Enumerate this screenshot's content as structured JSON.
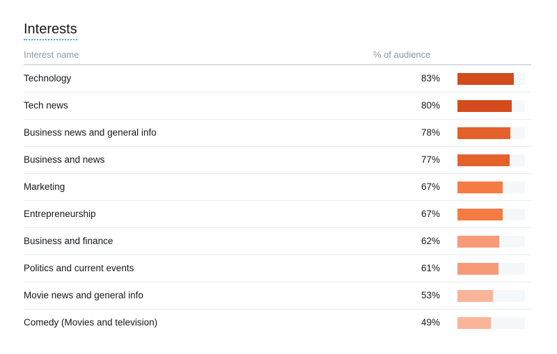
{
  "panel": {
    "title": "Interests",
    "columns": {
      "name": "Interest name",
      "percent": "% of audience"
    }
  },
  "rows": [
    {
      "name": "Technology",
      "percent_label": "83%",
      "value": 83,
      "color": "#d24c1b"
    },
    {
      "name": "Tech news",
      "percent_label": "80%",
      "value": 80,
      "color": "#d24c1b"
    },
    {
      "name": "Business news and general info",
      "percent_label": "78%",
      "value": 78,
      "color": "#e5612b"
    },
    {
      "name": "Business and news",
      "percent_label": "77%",
      "value": 77,
      "color": "#e5612b"
    },
    {
      "name": "Marketing",
      "percent_label": "67%",
      "value": 67,
      "color": "#f57b45"
    },
    {
      "name": "Entrepreneurship",
      "percent_label": "67%",
      "value": 67,
      "color": "#f57b45"
    },
    {
      "name": "Business and finance",
      "percent_label": "62%",
      "value": 62,
      "color": "#f79a78"
    },
    {
      "name": "Politics and current events",
      "percent_label": "61%",
      "value": 61,
      "color": "#f79a78"
    },
    {
      "name": "Movie news and general info",
      "percent_label": "53%",
      "value": 53,
      "color": "#fab49a"
    },
    {
      "name": "Comedy (Movies and television)",
      "percent_label": "49%",
      "value": 49,
      "color": "#fab49a"
    }
  ]
}
